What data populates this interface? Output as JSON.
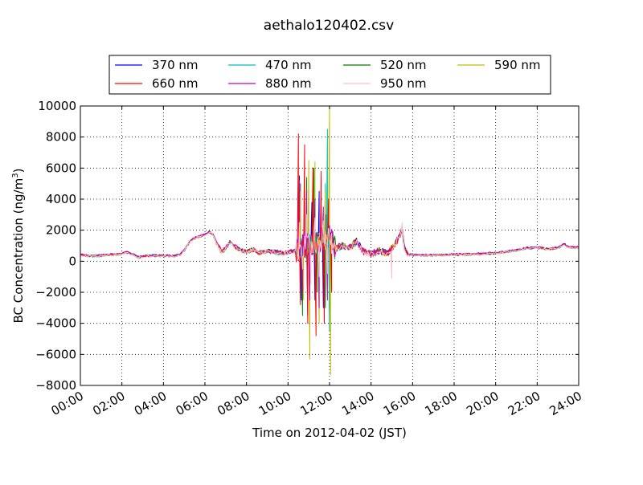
{
  "chart_data": {
    "type": "line",
    "title": "aethalo120402.csv",
    "xlabel": "Time on 2012-04-02 (JST)",
    "ylabel": "BC Concentration (ng/m",
    "ylabel_sup": "3",
    "ylabel_tail": ")",
    "xlim": [
      "00:00",
      "24:00"
    ],
    "ylim": [
      -8000,
      10000
    ],
    "xticks": [
      "00:00",
      "02:00",
      "04:00",
      "06:00",
      "08:00",
      "10:00",
      "12:00",
      "14:00",
      "16:00",
      "18:00",
      "20:00",
      "22:00",
      "24:00"
    ],
    "yticks": [
      -8000,
      -6000,
      -4000,
      -2000,
      0,
      2000,
      4000,
      6000,
      8000,
      10000
    ],
    "ytick_labels": [
      "−8000",
      "−6000",
      "−4000",
      "−2000",
      "0",
      "2000",
      "4000",
      "6000",
      "8000",
      "10000"
    ],
    "grid": true,
    "legend_position": "top, above plot",
    "legend_columns": 4,
    "x_unit": "hours",
    "base_profile": [
      [
        0.0,
        400
      ],
      [
        0.5,
        330
      ],
      [
        1.0,
        360
      ],
      [
        1.5,
        420
      ],
      [
        2.0,
        460
      ],
      [
        2.2,
        580
      ],
      [
        2.5,
        450
      ],
      [
        2.8,
        260
      ],
      [
        3.0,
        300
      ],
      [
        3.5,
        360
      ],
      [
        4.0,
        350
      ],
      [
        4.5,
        330
      ],
      [
        4.8,
        400
      ],
      [
        5.0,
        700
      ],
      [
        5.3,
        1300
      ],
      [
        5.6,
        1550
      ],
      [
        6.0,
        1700
      ],
      [
        6.2,
        1900
      ],
      [
        6.4,
        1700
      ],
      [
        6.6,
        1050
      ],
      [
        6.8,
        600
      ],
      [
        7.0,
        850
      ],
      [
        7.2,
        1200
      ],
      [
        7.4,
        1000
      ],
      [
        7.7,
        700
      ],
      [
        8.0,
        600
      ],
      [
        8.3,
        750
      ],
      [
        8.6,
        550
      ],
      [
        9.0,
        650
      ],
      [
        9.4,
        600
      ],
      [
        9.8,
        500
      ],
      [
        10.1,
        600
      ],
      [
        10.4,
        700
      ],
      [
        10.7,
        900
      ],
      [
        11.0,
        1100
      ],
      [
        11.5,
        1300
      ],
      [
        12.0,
        1500
      ],
      [
        12.3,
        800
      ],
      [
        12.6,
        1000
      ],
      [
        13.0,
        900
      ],
      [
        13.3,
        1300
      ],
      [
        13.6,
        650
      ],
      [
        14.0,
        450
      ],
      [
        14.4,
        650
      ],
      [
        14.8,
        500
      ],
      [
        15.2,
        1200
      ],
      [
        15.5,
        2000
      ],
      [
        15.6,
        900
      ],
      [
        15.8,
        420
      ],
      [
        16.0,
        400
      ],
      [
        17.0,
        380
      ],
      [
        18.0,
        420
      ],
      [
        19.0,
        450
      ],
      [
        20.0,
        520
      ],
      [
        21.0,
        700
      ],
      [
        21.5,
        850
      ],
      [
        22.0,
        880
      ],
      [
        22.5,
        780
      ],
      [
        23.0,
        850
      ],
      [
        23.3,
        1100
      ],
      [
        23.5,
        900
      ],
      [
        24.0,
        880
      ]
    ],
    "series": [
      {
        "name": "370 nm",
        "color": "#0000ff",
        "offset": 20,
        "spikes": [
          [
            10.55,
            5500
          ],
          [
            10.65,
            -2500
          ],
          [
            10.8,
            4000
          ],
          [
            10.95,
            -3500
          ],
          [
            11.15,
            3800
          ],
          [
            11.3,
            -2500
          ],
          [
            11.5,
            4500
          ],
          [
            11.7,
            -3000
          ],
          [
            11.85,
            3000
          ],
          [
            12.0,
            -3500
          ],
          [
            12.15,
            1000
          ]
        ]
      },
      {
        "name": "470 nm",
        "color": "#00bfbf",
        "offset": -30,
        "spikes": [
          [
            10.6,
            4000
          ],
          [
            10.7,
            -2800
          ],
          [
            10.9,
            3500
          ],
          [
            11.05,
            -1500
          ],
          [
            11.3,
            4200
          ],
          [
            11.5,
            -2000
          ],
          [
            11.8,
            5000
          ],
          [
            11.9,
            8500
          ],
          [
            12.0,
            -4500
          ],
          [
            12.15,
            1000
          ]
        ]
      },
      {
        "name": "520 nm",
        "color": "#008000",
        "offset": 10,
        "spikes": [
          [
            10.6,
            5000
          ],
          [
            10.7,
            -3500
          ],
          [
            10.9,
            5400
          ],
          [
            11.05,
            -4300
          ],
          [
            11.25,
            6000
          ],
          [
            11.4,
            -2000
          ],
          [
            11.6,
            3000
          ],
          [
            11.8,
            -3000
          ],
          [
            11.95,
            2000
          ],
          [
            12.1,
            1000
          ]
        ]
      },
      {
        "name": "590 nm",
        "color": "#bfbf00",
        "offset": -10,
        "spikes": [
          [
            10.6,
            4500
          ],
          [
            10.75,
            -2500
          ],
          [
            11.0,
            6500
          ],
          [
            11.05,
            -6300
          ],
          [
            11.3,
            6400
          ],
          [
            11.5,
            -4000
          ],
          [
            11.8,
            4500
          ],
          [
            12.0,
            10000
          ],
          [
            12.05,
            -7300
          ],
          [
            12.2,
            1200
          ]
        ]
      },
      {
        "name": "660 nm",
        "color": "#ff0000",
        "offset": 0,
        "spikes": [
          [
            10.5,
            8200
          ],
          [
            10.6,
            -2800
          ],
          [
            10.8,
            7500
          ],
          [
            10.95,
            -4000
          ],
          [
            11.2,
            6000
          ],
          [
            11.35,
            -4800
          ],
          [
            11.6,
            5800
          ],
          [
            11.75,
            -4000
          ],
          [
            11.95,
            4000
          ],
          [
            12.1,
            -2000
          ],
          [
            12.25,
            1000
          ]
        ]
      },
      {
        "name": "880 nm",
        "color": "#bf00bf",
        "offset": 30,
        "spikes": [
          [
            10.55,
            5200
          ],
          [
            10.7,
            -2000
          ],
          [
            10.9,
            4500
          ],
          [
            11.05,
            -2500
          ],
          [
            11.3,
            4000
          ],
          [
            11.5,
            -3000
          ],
          [
            11.7,
            3500
          ],
          [
            11.9,
            -2500
          ],
          [
            12.1,
            1500
          ]
        ]
      },
      {
        "name": "950 nm",
        "color": "#ffc0cb",
        "offset": -20,
        "spikes": [
          [
            10.55,
            2500
          ],
          [
            10.7,
            -500
          ],
          [
            10.9,
            3000
          ],
          [
            11.1,
            -1500
          ],
          [
            11.3,
            2800
          ],
          [
            11.5,
            -1000
          ],
          [
            11.7,
            2600
          ],
          [
            11.9,
            -800
          ],
          [
            12.1,
            1800
          ],
          [
            15.0,
            -1100
          ],
          [
            15.5,
            2500
          ]
        ]
      }
    ]
  }
}
